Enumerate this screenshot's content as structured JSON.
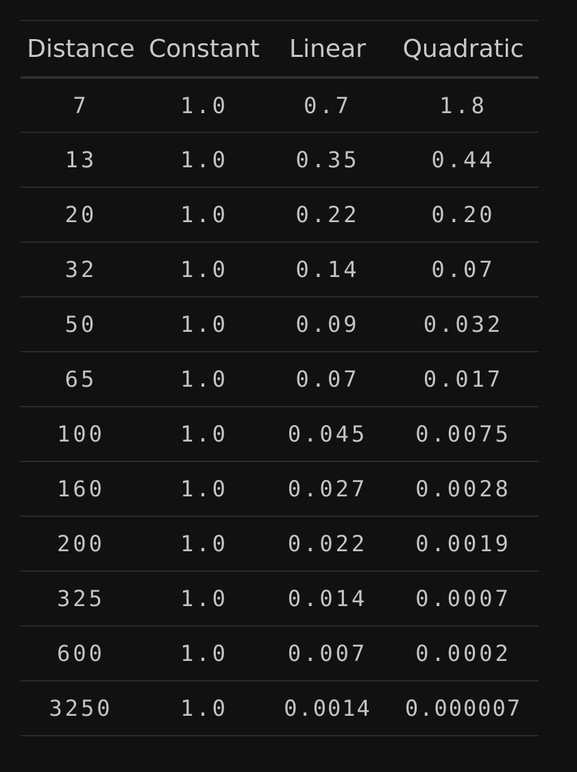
{
  "table": {
    "headers": [
      "Distance",
      "Constant",
      "Linear",
      "Quadratic"
    ],
    "rows": [
      [
        "7",
        "1.0",
        "0.7",
        "1.8"
      ],
      [
        "13",
        "1.0",
        "0.35",
        "0.44"
      ],
      [
        "20",
        "1.0",
        "0.22",
        "0.20"
      ],
      [
        "32",
        "1.0",
        "0.14",
        "0.07"
      ],
      [
        "50",
        "1.0",
        "0.09",
        "0.032"
      ],
      [
        "65",
        "1.0",
        "0.07",
        "0.017"
      ],
      [
        "100",
        "1.0",
        "0.045",
        "0.0075"
      ],
      [
        "160",
        "1.0",
        "0.027",
        "0.0028"
      ],
      [
        "200",
        "1.0",
        "0.022",
        "0.0019"
      ],
      [
        "325",
        "1.0",
        "0.014",
        "0.0007"
      ],
      [
        "600",
        "1.0",
        "0.007",
        "0.0002"
      ],
      [
        "3250",
        "1.0",
        "0.0014",
        "0.000007"
      ]
    ]
  }
}
